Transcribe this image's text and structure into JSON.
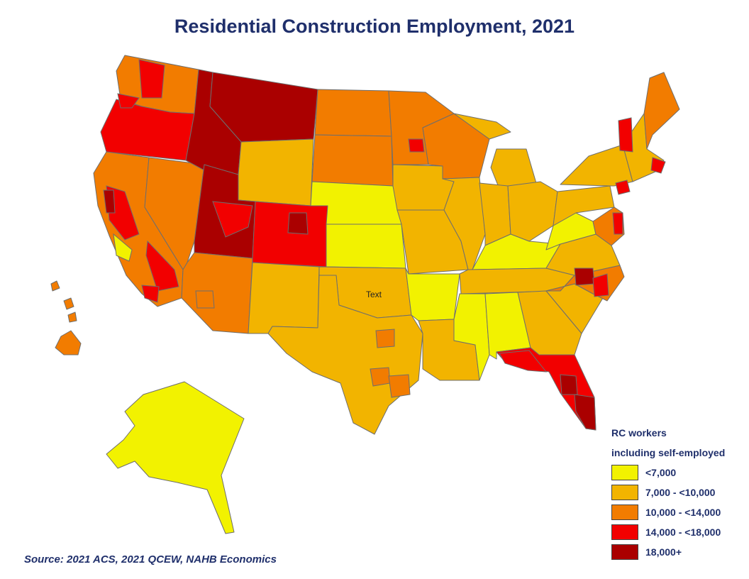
{
  "title": "Residential Construction Employment, 2021",
  "source": "Source: 2021 ACS, 2021 QCEW, NAHB Economics",
  "stray_label": "Text",
  "colors": {
    "c1": "#f2f200",
    "c2": "#f2b400",
    "c3": "#f27c00",
    "c4": "#f20000",
    "c5": "#aa0000",
    "border": "#6e6e6e"
  },
  "legend": {
    "title_line1": "RC workers",
    "title_line2": "including self-employed",
    "items": [
      {
        "label": "<7,000",
        "color": "#f2f200"
      },
      {
        "label": "7,000 - <10,000",
        "color": "#f2b400"
      },
      {
        "label": "10,000 - <14,000",
        "color": "#f27c00"
      },
      {
        "label": "14,000 - <18,000",
        "color": "#f20000"
      },
      {
        "label": "18,000+",
        "color": "#aa0000"
      }
    ]
  },
  "regions": [
    {
      "name": "Montana",
      "cls": "c5"
    },
    {
      "name": "Idaho",
      "cls": "c5"
    },
    {
      "name": "Utah",
      "cls": "c5"
    },
    {
      "name": "Oregon",
      "cls": "c4"
    },
    {
      "name": "Washington",
      "cls": "c3"
    },
    {
      "name": "Nevada",
      "cls": "c3"
    },
    {
      "name": "California",
      "cls": "c3"
    },
    {
      "name": "Wyoming",
      "cls": "c2"
    },
    {
      "name": "Colorado",
      "cls": "c4"
    },
    {
      "name": "Arizona",
      "cls": "c3"
    },
    {
      "name": "New Mexico",
      "cls": "c2"
    },
    {
      "name": "North Dakota",
      "cls": "c3"
    },
    {
      "name": "South Dakota",
      "cls": "c3"
    },
    {
      "name": "Nebraska",
      "cls": "c1"
    },
    {
      "name": "Kansas",
      "cls": "c1"
    },
    {
      "name": "Oklahoma",
      "cls": "c2"
    },
    {
      "name": "Texas",
      "cls": "c2"
    },
    {
      "name": "Minnesota",
      "cls": "c3"
    },
    {
      "name": "Iowa",
      "cls": "c2"
    },
    {
      "name": "Missouri",
      "cls": "c2"
    },
    {
      "name": "Arkansas",
      "cls": "c1"
    },
    {
      "name": "Louisiana",
      "cls": "c2"
    },
    {
      "name": "Wisconsin",
      "cls": "c3"
    },
    {
      "name": "Illinois",
      "cls": "c2"
    },
    {
      "name": "Michigan",
      "cls": "c2"
    },
    {
      "name": "Indiana",
      "cls": "c2"
    },
    {
      "name": "Ohio",
      "cls": "c2"
    },
    {
      "name": "Kentucky",
      "cls": "c1"
    },
    {
      "name": "Tennessee",
      "cls": "c2"
    },
    {
      "name": "Mississippi",
      "cls": "c1"
    },
    {
      "name": "Alabama",
      "cls": "c1"
    },
    {
      "name": "Georgia",
      "cls": "c2"
    },
    {
      "name": "Florida",
      "cls": "c4"
    },
    {
      "name": "South Carolina",
      "cls": "c2"
    },
    {
      "name": "North Carolina",
      "cls": "c3"
    },
    {
      "name": "Virginia",
      "cls": "c2"
    },
    {
      "name": "West Virginia",
      "cls": "c1"
    },
    {
      "name": "Pennsylvania",
      "cls": "c2"
    },
    {
      "name": "New York",
      "cls": "c2"
    },
    {
      "name": "Maine",
      "cls": "c3"
    },
    {
      "name": "New England",
      "cls": "c2"
    },
    {
      "name": "Mid-Atlantic coast",
      "cls": "c3"
    },
    {
      "name": "Alaska",
      "cls": "c1"
    },
    {
      "name": "Hawaii",
      "cls": "c3"
    }
  ]
}
